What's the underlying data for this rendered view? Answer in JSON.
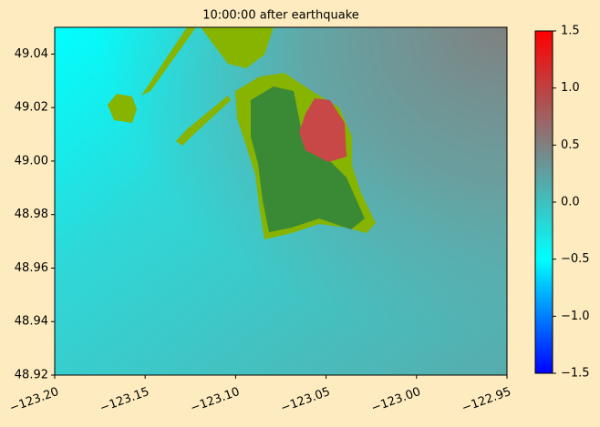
{
  "chart_data": {
    "type": "heatmap-map",
    "title": "10:00:00 after earthquake",
    "xlim": [
      -123.2,
      -122.95
    ],
    "ylim": [
      48.92,
      49.05
    ],
    "xticks": [
      {
        "value": -123.2,
        "label": "−123.20"
      },
      {
        "value": -123.15,
        "label": "−123.15"
      },
      {
        "value": -123.1,
        "label": "−123.10"
      },
      {
        "value": -123.05,
        "label": "−123.05"
      },
      {
        "value": -123.0,
        "label": "−123.00"
      },
      {
        "value": -122.95,
        "label": "−122.95"
      }
    ],
    "yticks": [
      48.92,
      48.94,
      48.96,
      48.98,
      {
        "value": 49.0,
        "label": "49.00"
      },
      49.02,
      49.04
    ],
    "colorbar": {
      "lim": [
        -1.5,
        1.5
      ],
      "ticks": [
        {
          "value": -1.5,
          "label": "−1.5"
        },
        {
          "value": -1.0,
          "label": "−1.0"
        },
        {
          "value": -0.5,
          "label": "−0.5"
        },
        {
          "value": 0.0,
          "label": "0.0"
        },
        {
          "value": 0.5,
          "label": "0.5"
        },
        {
          "value": 1.0,
          "label": "1.0"
        },
        1.5
      ],
      "colors": [
        "#0000ff",
        "#00ffff",
        "#808080",
        "#ff0000"
      ]
    }
  }
}
